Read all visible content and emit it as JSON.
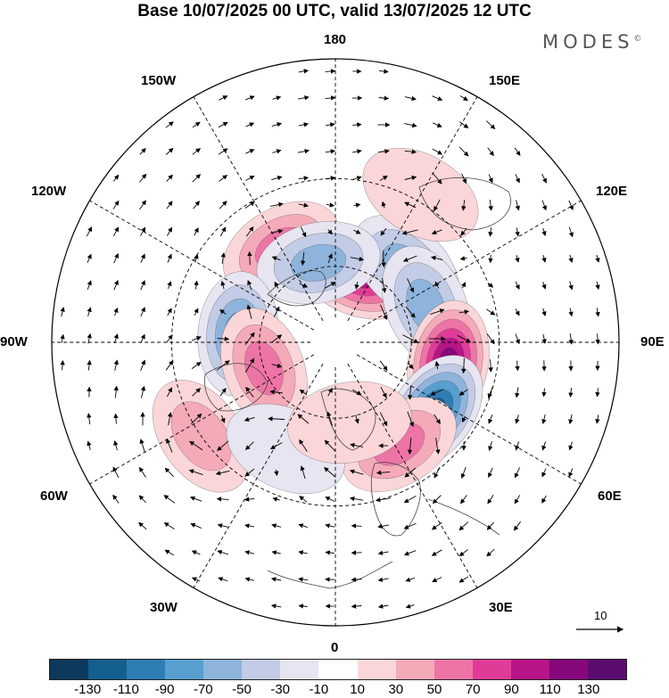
{
  "title": "Base 10/07/2025 00 UTC, valid 13/07/2025 12 UTC",
  "brand": "MODES",
  "brand_mark": "©",
  "longitude_labels": {
    "top": "180",
    "bottom": "0",
    "left": "90W",
    "right": "90E",
    "upper_left_1": "150W",
    "upper_left_2": "120W",
    "lower_left_1": "60W",
    "lower_left_2": "30W",
    "upper_right_1": "150E",
    "upper_right_2": "120E",
    "lower_right_1": "60E",
    "lower_right_2": "30E"
  },
  "reference_vector": {
    "label": "10"
  },
  "colorbar": {
    "colors": [
      "#0d3a5c",
      "#13608f",
      "#2f7db5",
      "#579fcf",
      "#8eb4dc",
      "#c2cce6",
      "#e7e5f1",
      "#ffffff",
      "#fbd6d9",
      "#f5aab8",
      "#ee74a6",
      "#e03c97",
      "#b81487",
      "#86087a",
      "#5a0d6e"
    ],
    "ticks": [
      "-130",
      "-110",
      "-90",
      "-70",
      "-50",
      "-30",
      "-10",
      "10",
      "30",
      "50",
      "70",
      "90",
      "110",
      "130"
    ]
  },
  "map": {
    "projection": "north-polar-stereographic",
    "anomaly_centers": [
      {
        "lon": 160,
        "lat": 62,
        "value": 95
      },
      {
        "lon": 137,
        "lat": 50,
        "value": -60
      },
      {
        "lon": 112,
        "lat": 52,
        "value": -60
      },
      {
        "lon": 80,
        "lat": 46,
        "value": 120
      },
      {
        "lon": 55,
        "lat": 44,
        "value": -120
      },
      {
        "lon": 32,
        "lat": 44,
        "value": 65
      },
      {
        "lon": -150,
        "lat": 48,
        "value": 55
      },
      {
        "lon": -168,
        "lat": 58,
        "value": -55
      },
      {
        "lon": -95,
        "lat": 52,
        "value": -70
      },
      {
        "lon": -70,
        "lat": 60,
        "value": 60
      },
      {
        "lon": -55,
        "lat": 30,
        "value": 35
      },
      {
        "lon": -25,
        "lat": 45,
        "value": -25
      },
      {
        "lon": 10,
        "lat": 58,
        "value": 20
      },
      {
        "lon": 150,
        "lat": 28,
        "value": 25
      }
    ]
  }
}
